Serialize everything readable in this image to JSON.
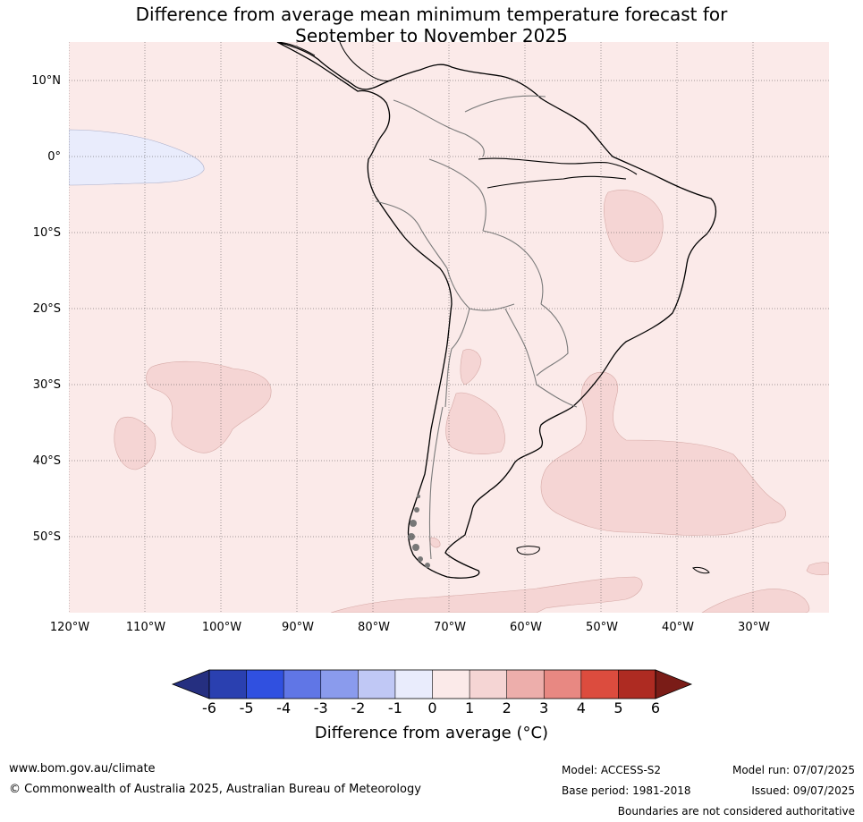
{
  "title": {
    "line1": "Difference from average mean minimum temperature forecast for",
    "line2": "September to November 2025"
  },
  "map": {
    "region": "South America",
    "lat_labels": [
      "10°N",
      "0°",
      "10°S",
      "20°S",
      "30°S",
      "40°S",
      "50°S"
    ],
    "lon_labels": [
      "120°W",
      "110°W",
      "100°W",
      "90°W",
      "80°W",
      "70°W",
      "60°W",
      "50°W",
      "40°W",
      "30°W"
    ],
    "background_category": "0 to 1",
    "anomaly_areas": [
      {
        "category": "-1 to 0",
        "location": "eastern equatorial Pacific near 0°, 120°W–102°W"
      },
      {
        "category": "1 to 2",
        "location": "north-eastern Brazil"
      },
      {
        "category": "1 to 2",
        "location": "south-east Pacific near 30°S–40°S, 110°W–90°W"
      },
      {
        "category": "1 to 2",
        "location": "northern Argentina / Chile"
      },
      {
        "category": "1 to 2",
        "location": "central Argentina"
      },
      {
        "category": "1 to 2",
        "location": "South Atlantic off Uruguay and Argentina"
      },
      {
        "category": "1 to 2",
        "location": "Southern Ocean south of Drake Passage"
      }
    ]
  },
  "colorbar": {
    "ticks": [
      "-6",
      "-5",
      "-4",
      "-3",
      "-2",
      "-1",
      "0",
      "1",
      "2",
      "3",
      "4",
      "5",
      "6"
    ],
    "colors": [
      "#252f80",
      "#2a40b0",
      "#3050e0",
      "#6076e6",
      "#8a9bed",
      "#c0c8f5",
      "#e9ecfc",
      "#fbeae9",
      "#f5d5d4",
      "#edaeab",
      "#e88882",
      "#dc4c3e",
      "#ae2b22",
      "#7a1c17"
    ],
    "label": "Difference from average (°C)"
  },
  "footer": {
    "website": "www.bom.gov.au/climate",
    "copyright": "© Commonwealth of Australia 2025, Australian Bureau of Meteorology",
    "model": "Model: ACCESS-S2",
    "base_period": "Base period: 1981-2018",
    "model_run": "Model run: 07/07/2025",
    "issued": "Issued: 09/07/2025",
    "disclaimer": "Boundaries are not considered authoritative"
  }
}
